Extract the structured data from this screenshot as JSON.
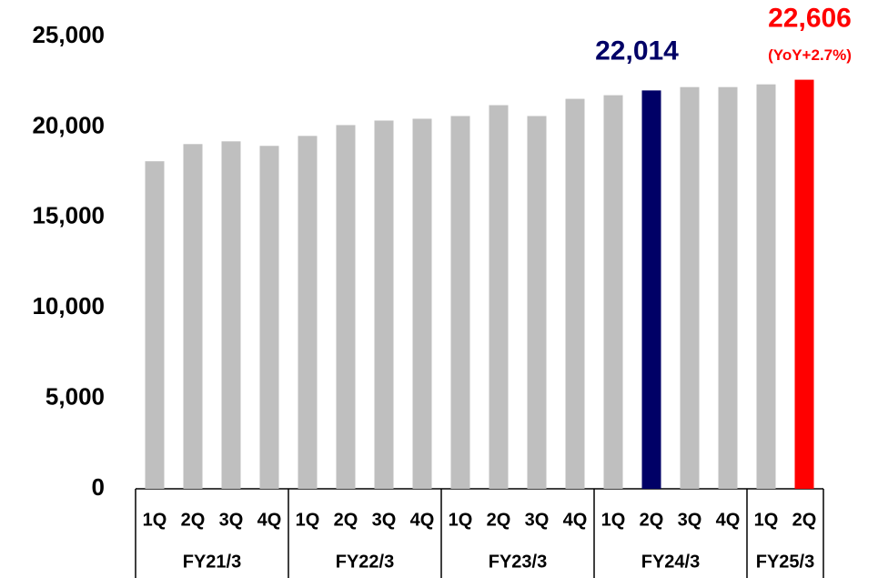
{
  "chart_data": {
    "type": "bar",
    "groups": [
      {
        "name": "FY21/3",
        "categories": [
          "1Q",
          "2Q",
          "3Q",
          "4Q"
        ],
        "values": [
          18100,
          19050,
          19200,
          18950
        ],
        "colors": [
          "#bfbfbf",
          "#bfbfbf",
          "#bfbfbf",
          "#bfbfbf"
        ],
        "value_labels": [
          null,
          null,
          null,
          null
        ]
      },
      {
        "name": "FY22/3",
        "categories": [
          "1Q",
          "2Q",
          "3Q",
          "4Q"
        ],
        "values": [
          19500,
          20100,
          20350,
          20450
        ],
        "colors": [
          "#bfbfbf",
          "#bfbfbf",
          "#bfbfbf",
          "#bfbfbf"
        ],
        "value_labels": [
          null,
          null,
          null,
          null
        ]
      },
      {
        "name": "FY23/3",
        "categories": [
          "1Q",
          "2Q",
          "3Q",
          "4Q"
        ],
        "values": [
          20600,
          21200,
          20600,
          21550
        ],
        "colors": [
          "#bfbfbf",
          "#bfbfbf",
          "#bfbfbf",
          "#bfbfbf"
        ],
        "value_labels": [
          null,
          null,
          null,
          null
        ]
      },
      {
        "name": "FY24/3",
        "categories": [
          "1Q",
          "2Q",
          "3Q",
          "4Q"
        ],
        "values": [
          21750,
          22014,
          22200,
          22200
        ],
        "colors": [
          "#bfbfbf",
          "#000066",
          "#bfbfbf",
          "#bfbfbf"
        ],
        "value_labels": [
          null,
          "22,014",
          null,
          null
        ]
      },
      {
        "name": "FY25/3",
        "categories": [
          "1Q",
          "2Q"
        ],
        "values": [
          22350,
          22606
        ],
        "colors": [
          "#bfbfbf",
          "#ff0000"
        ],
        "value_labels": [
          null,
          "22,606"
        ]
      }
    ],
    "annotation": "(YoY+2.7%)",
    "ylim": [
      0,
      25000
    ],
    "yticks": [
      0,
      {
        "value": 5000,
        "label": "5,000"
      },
      {
        "value": 10000,
        "label": "10,000"
      },
      {
        "value": 15000,
        "label": "15,000"
      },
      {
        "value": 20000,
        "label": "20,000"
      },
      {
        "value": 25000,
        "label": "25,000"
      }
    ],
    "grid": false
  }
}
